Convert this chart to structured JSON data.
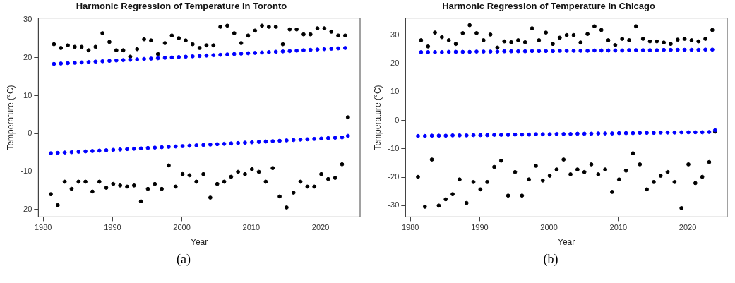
{
  "chart_data": [
    {
      "type": "scatter",
      "title": "Harmonic Regression of Temperature in Toronto",
      "xlabel": "Year",
      "ylabel": "Temperature (°C)",
      "annotations": [
        "(a)"
      ],
      "xlim": [
        1979.3,
        2025.7
      ],
      "xticks": [
        1980,
        1990,
        2000,
        2010,
        2020
      ],
      "ylim": [
        -22,
        30.5
      ],
      "yticks": [
        -20,
        -10,
        0,
        10,
        20,
        30
      ],
      "grid": false,
      "legend": false,
      "marker": "circle",
      "series": [
        {
          "color": "#000000",
          "x": [
            1981.1,
            1981.55,
            1982.1,
            1982.55,
            1983.1,
            1983.55,
            1984.1,
            1984.55,
            1985.1,
            1985.55,
            1986.1,
            1986.55,
            1987.1,
            1987.55,
            1988.1,
            1988.55,
            1989.1,
            1989.55,
            1990.1,
            1990.55,
            1991.1,
            1991.55,
            1992.1,
            1992.55,
            1993.1,
            1993.55,
            1994.1,
            1994.55,
            1995.1,
            1995.55,
            1996.1,
            1996.55,
            1997.1,
            1997.55,
            1998.1,
            1998.55,
            1999.1,
            1999.55,
            2000.1,
            2000.55,
            2001.1,
            2001.55,
            2002.1,
            2002.55,
            2003.1,
            2003.55,
            2004.1,
            2004.55,
            2005.1,
            2005.55,
            2006.1,
            2006.55,
            2007.1,
            2007.55,
            2008.1,
            2008.55,
            2009.1,
            2009.55,
            2010.1,
            2010.55,
            2011.1,
            2011.55,
            2012.1,
            2012.55,
            2013.1,
            2013.55,
            2014.1,
            2014.55,
            2015.1,
            2015.55,
            2016.1,
            2016.55,
            2017.1,
            2017.55,
            2018.1,
            2018.55,
            2019.1,
            2019.55,
            2020.1,
            2020.55,
            2021.1,
            2021.55,
            2022.1,
            2022.55,
            2023.1,
            2023.55,
            2023.95
          ],
          "values": [
            -16,
            23.6,
            -18.9,
            22.6,
            -12.7,
            23.3,
            -14.6,
            22.9,
            -12.7,
            22.9,
            -12.7,
            22,
            -15.3,
            22.9,
            -12.7,
            26.5,
            -14.3,
            24.2,
            -13.3,
            22,
            -13.7,
            22,
            -14,
            20.3,
            -13.7,
            22.3,
            -17.9,
            24.9,
            -14.6,
            24.6,
            -13.3,
            21,
            -14.6,
            23.9,
            -8.4,
            25.9,
            -14,
            25.2,
            -10.7,
            24.6,
            -11,
            23.6,
            -12.7,
            22.6,
            -10.7,
            23.3,
            -16.9,
            23.3,
            -13.3,
            28.2,
            -12.7,
            28.5,
            -11.4,
            26.5,
            -10.1,
            23.9,
            -10.7,
            25.9,
            -9.4,
            27.2,
            -10.1,
            28.5,
            -12.7,
            28.2,
            -9.1,
            28.2,
            -16.6,
            23.6,
            -19.5,
            27.5,
            -15.6,
            27.5,
            -12.7,
            26.2,
            -14,
            26.2,
            -14,
            27.8,
            -10.7,
            27.8,
            -12,
            26.9,
            -11.7,
            25.9,
            -8.1,
            25.9,
            4.3
          ]
        },
        {
          "color": "#0000ff",
          "x": [
            1981.1,
            1981.55,
            1982.1,
            1982.55,
            1983.1,
            1983.55,
            1984.1,
            1984.55,
            1985.1,
            1985.55,
            1986.1,
            1986.55,
            1987.1,
            1987.55,
            1988.1,
            1988.55,
            1989.1,
            1989.55,
            1990.1,
            1990.55,
            1991.1,
            1991.55,
            1992.1,
            1992.55,
            1993.1,
            1993.55,
            1994.1,
            1994.55,
            1995.1,
            1995.55,
            1996.1,
            1996.55,
            1997.1,
            1997.55,
            1998.1,
            1998.55,
            1999.1,
            1999.55,
            2000.1,
            2000.55,
            2001.1,
            2001.55,
            2002.1,
            2002.55,
            2003.1,
            2003.55,
            2004.1,
            2004.55,
            2005.1,
            2005.55,
            2006.1,
            2006.55,
            2007.1,
            2007.55,
            2008.1,
            2008.55,
            2009.1,
            2009.55,
            2010.1,
            2010.55,
            2011.1,
            2011.55,
            2012.1,
            2012.55,
            2013.1,
            2013.55,
            2014.1,
            2014.55,
            2015.1,
            2015.55,
            2016.1,
            2016.55,
            2017.1,
            2017.55,
            2018.1,
            2018.55,
            2019.1,
            2019.55,
            2020.1,
            2020.55,
            2021.1,
            2021.55,
            2022.1,
            2022.55,
            2023.1,
            2023.55,
            2023.95
          ],
          "values": [
            -5.2,
            18.4,
            -5.1,
            18.5,
            -5,
            18.6,
            -4.9,
            18.7,
            -4.8,
            18.8,
            -4.7,
            18.9,
            -4.6,
            19,
            -4.5,
            19.1,
            -4.4,
            19.2,
            -4.3,
            19.3,
            -4.2,
            19.4,
            -4.1,
            19.5,
            -4,
            19.6,
            -3.9,
            19.7,
            -3.8,
            19.8,
            -3.7,
            19.9,
            -3.6,
            20,
            -3.5,
            20.1,
            -3.4,
            20.2,
            -3.3,
            20.3,
            -3.2,
            20.4,
            -3.1,
            20.5,
            -3,
            20.6,
            -2.9,
            20.7,
            -2.8,
            20.8,
            -2.7,
            20.9,
            -2.6,
            21,
            -2.5,
            21.1,
            -2.4,
            21.2,
            -2.3,
            21.3,
            -2.2,
            21.4,
            -2.1,
            21.5,
            -2,
            21.6,
            -1.9,
            21.7,
            -1.8,
            21.8,
            -1.7,
            21.9,
            -1.6,
            22,
            -1.5,
            22.1,
            -1.4,
            22.2,
            -1.3,
            22.3,
            -1.2,
            22.4,
            -1.1,
            22.5,
            -1,
            22.6,
            -0.6
          ]
        }
      ]
    },
    {
      "type": "scatter",
      "title": "Harmonic Regression of Temperature in Chicago",
      "xlabel": "Year",
      "ylabel": "Temperature (°C)",
      "annotations": [
        "(b)"
      ],
      "xlim": [
        1979.3,
        2025.7
      ],
      "xticks": [
        1980,
        1990,
        2000,
        2010,
        2020
      ],
      "ylim": [
        -34,
        36
      ],
      "yticks": [
        -30,
        -20,
        -10,
        0,
        10,
        20,
        30
      ],
      "grid": false,
      "legend": false,
      "marker": "circle",
      "series": [
        {
          "color": "#000000",
          "x": [
            1981.1,
            1981.55,
            1982.1,
            1982.55,
            1983.1,
            1983.55,
            1984.1,
            1984.55,
            1985.1,
            1985.55,
            1986.1,
            1986.55,
            1987.1,
            1987.55,
            1988.1,
            1988.55,
            1989.1,
            1989.55,
            1990.1,
            1990.55,
            1991.1,
            1991.55,
            1992.1,
            1992.55,
            1993.1,
            1993.55,
            1994.1,
            1994.55,
            1995.1,
            1995.55,
            1996.1,
            1996.55,
            1997.1,
            1997.55,
            1998.1,
            1998.55,
            1999.1,
            1999.55,
            2000.1,
            2000.55,
            2001.1,
            2001.55,
            2002.1,
            2002.55,
            2003.1,
            2003.55,
            2004.1,
            2004.55,
            2005.1,
            2005.55,
            2006.1,
            2006.55,
            2007.1,
            2007.55,
            2008.1,
            2008.55,
            2009.1,
            2009.55,
            2010.1,
            2010.55,
            2011.1,
            2011.55,
            2012.1,
            2012.55,
            2013.1,
            2013.55,
            2014.1,
            2014.55,
            2015.1,
            2015.55,
            2016.1,
            2016.55,
            2017.1,
            2017.55,
            2018.1,
            2018.55,
            2019.1,
            2019.55,
            2020.1,
            2020.55,
            2021.1,
            2021.55,
            2022.1,
            2022.55,
            2023.1,
            2023.55,
            2023.95
          ],
          "values": [
            -19.9,
            28.2,
            -30.4,
            26,
            -13.8,
            30.9,
            -30,
            29.3,
            -27.8,
            28.2,
            -26,
            26.9,
            -20.8,
            30.7,
            -29.1,
            33.5,
            -21.7,
            30.7,
            -24.3,
            28.2,
            -21.7,
            30.2,
            -16.4,
            25.6,
            -14.2,
            27.8,
            -26.5,
            27.5,
            -18.2,
            28.2,
            -26.5,
            27.5,
            -20.8,
            32.4,
            -16,
            28.2,
            -21.2,
            30.9,
            -19.5,
            26.9,
            -17.3,
            29.1,
            -13.8,
            30,
            -19,
            30,
            -17.3,
            27.4,
            -18.2,
            30.4,
            -15.5,
            33.1,
            -19,
            31.8,
            -17.3,
            28.2,
            -25.2,
            26.5,
            -20.8,
            28.7,
            -17.7,
            28.2,
            -11.6,
            33.1,
            -15.5,
            28.7,
            -24.3,
            27.8,
            -21.7,
            27.8,
            -19.5,
            27.4,
            -18.2,
            26.9,
            -21.7,
            28.4,
            -30.9,
            28.7,
            -15.5,
            28.2,
            -22.1,
            27.8,
            -19.9,
            28.7,
            -14.7,
            31.8,
            -4
          ]
        },
        {
          "color": "#0000ff",
          "x": [
            1981.1,
            1981.55,
            1982.1,
            1982.55,
            1983.1,
            1983.55,
            1984.1,
            1984.55,
            1985.1,
            1985.55,
            1986.1,
            1986.55,
            1987.1,
            1987.55,
            1988.1,
            1988.55,
            1989.1,
            1989.55,
            1990.1,
            1990.55,
            1991.1,
            1991.55,
            1992.1,
            1992.55,
            1993.1,
            1993.55,
            1994.1,
            1994.55,
            1995.1,
            1995.55,
            1996.1,
            1996.55,
            1997.1,
            1997.55,
            1998.1,
            1998.55,
            1999.1,
            1999.55,
            2000.1,
            2000.55,
            2001.1,
            2001.55,
            2002.1,
            2002.55,
            2003.1,
            2003.55,
            2004.1,
            2004.55,
            2005.1,
            2005.55,
            2006.1,
            2006.55,
            2007.1,
            2007.55,
            2008.1,
            2008.55,
            2009.1,
            2009.55,
            2010.1,
            2010.55,
            2011.1,
            2011.55,
            2012.1,
            2012.55,
            2013.1,
            2013.55,
            2014.1,
            2014.55,
            2015.1,
            2015.55,
            2016.1,
            2016.55,
            2017.1,
            2017.55,
            2018.1,
            2018.55,
            2019.1,
            2019.55,
            2020.1,
            2020.55,
            2021.1,
            2021.55,
            2022.1,
            2022.55,
            2023.1,
            2023.55,
            2023.95
          ],
          "values": [
            -5.5,
            24,
            -5.5,
            24,
            -5.4,
            24,
            -5.4,
            24,
            -5.4,
            24.1,
            -5.3,
            24.1,
            -5.3,
            24.1,
            -5.3,
            24.1,
            -5.2,
            24.2,
            -5.2,
            24.2,
            -5.2,
            24.2,
            -5.1,
            24.2,
            -5.1,
            24.3,
            -5.1,
            24.3,
            -5,
            24.3,
            -5,
            24.3,
            -5,
            24.4,
            -4.9,
            24.4,
            -4.9,
            24.4,
            -4.9,
            24.4,
            -4.8,
            24.5,
            -4.8,
            24.5,
            -4.8,
            24.5,
            -4.7,
            24.5,
            -4.7,
            24.5,
            -4.7,
            24.6,
            -4.6,
            24.6,
            -4.6,
            24.6,
            -4.6,
            24.6,
            -4.5,
            24.6,
            -4.5,
            24.7,
            -4.5,
            24.7,
            -4.4,
            24.7,
            -4.4,
            24.7,
            -4.4,
            24.7,
            -4.3,
            24.8,
            -4.3,
            24.8,
            -4.3,
            24.8,
            -4.2,
            24.8,
            -4.2,
            24.8,
            -4.2,
            24.8,
            -4.2,
            24.9,
            -4.1,
            24.9,
            -3.5
          ]
        }
      ]
    }
  ]
}
